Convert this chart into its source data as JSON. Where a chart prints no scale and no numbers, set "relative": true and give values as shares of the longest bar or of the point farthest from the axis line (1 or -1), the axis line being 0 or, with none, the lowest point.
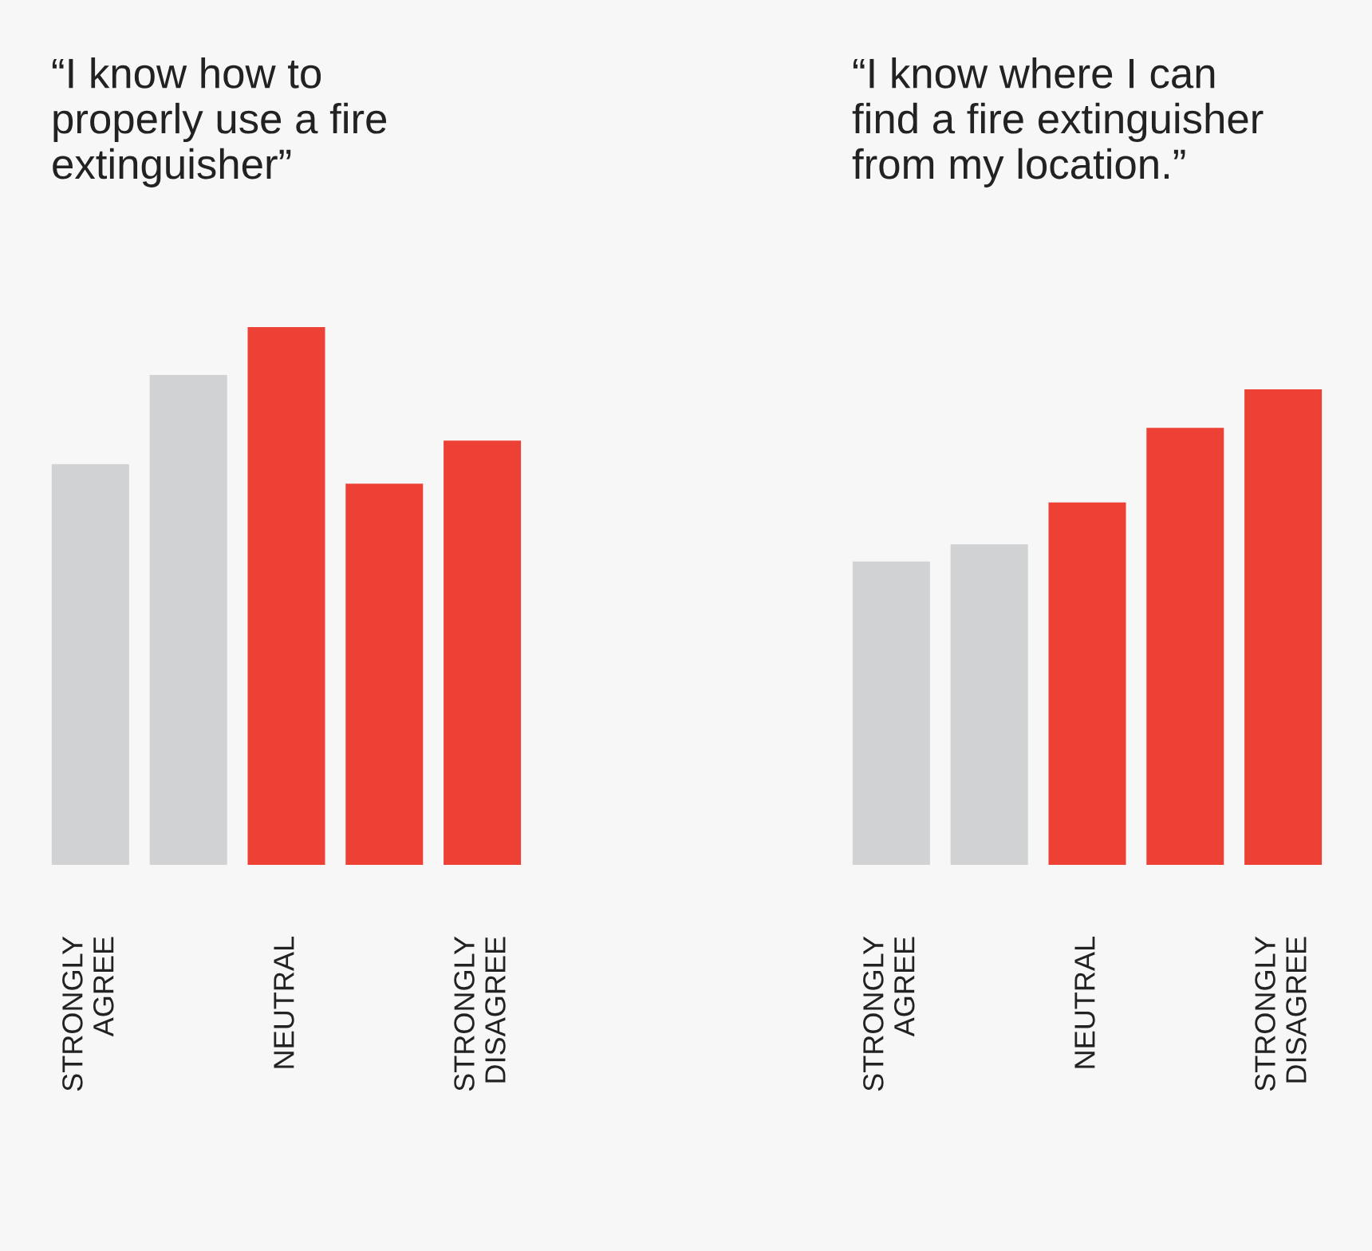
{
  "chart_data": [
    {
      "type": "bar",
      "title": "“I know how to\nproperly use a fire\nextinguisher”",
      "relative": true,
      "tick_labels": "x",
      "grid": false,
      "legend": false,
      "categories": [
        "STRONGLY\nAGREE",
        null,
        "NEUTRAL",
        null,
        "STRONGLY\nDISAGREE"
      ],
      "values": [
        0.745,
        0.911,
        1,
        0.709,
        0.789
      ],
      "colors": [
        "#d1d2d4",
        "#d1d2d4",
        "#ee4136",
        "#ee4136",
        "#ee4136"
      ]
    },
    {
      "type": "bar",
      "title": "“I know where I can\nfind a fire extinguisher\nfrom my location.”",
      "relative": true,
      "tick_labels": "x",
      "grid": false,
      "legend": false,
      "categories": [
        "STRONGLY\nAGREE",
        null,
        "NEUTRAL",
        null,
        "STRONGLY\nDISAGREE"
      ],
      "values": [
        0.638,
        0.674,
        0.762,
        0.919,
        1
      ],
      "colors": [
        "#d1d2d4",
        "#d1d2d4",
        "#ee4136",
        "#ee4136",
        "#ee4136"
      ]
    }
  ]
}
